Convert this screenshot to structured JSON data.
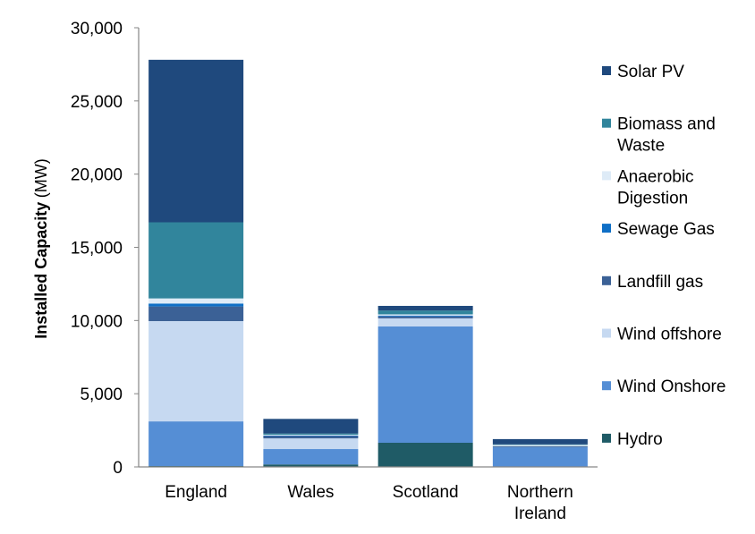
{
  "chart_data": {
    "type": "bar",
    "stacked": true,
    "categories": [
      "England",
      "Wales",
      "Scotland",
      "Northern Ireland"
    ],
    "category_lines": [
      [
        "England"
      ],
      [
        "Wales"
      ],
      [
        "Scotland"
      ],
      [
        "Northern",
        "Ireland"
      ]
    ],
    "ylabel_main": "Installed Capacity",
    "ylabel_unit": "(MW)",
    "ylim": [
      0,
      30000
    ],
    "yticks": [
      0,
      5000,
      10000,
      15000,
      20000,
      25000,
      30000
    ],
    "ytick_labels": [
      "0",
      "5,000",
      "10,000",
      "15,000",
      "20,000",
      "25,000",
      "30,000"
    ],
    "grid": false,
    "legend_position": "right",
    "series": [
      {
        "name": "Hydro",
        "color": "#1f5b66",
        "values": [
          60,
          170,
          1650,
          10
        ]
      },
      {
        "name": "Wind Onshore",
        "color": "#558ed5",
        "values": [
          3050,
          1050,
          7950,
          1330
        ]
      },
      {
        "name": "Wind offshore",
        "color": "#c6d9f1",
        "values": [
          6850,
          730,
          550,
          0
        ]
      },
      {
        "name": "Landfill gas",
        "color": "#3b6196",
        "values": [
          1000,
          160,
          130,
          60
        ]
      },
      {
        "name": "Sewage Gas",
        "color": "#0f6fc6",
        "values": [
          200,
          30,
          60,
          10
        ]
      },
      {
        "name": "Anaerobic Digestion",
        "color": "#deebf7",
        "values": [
          350,
          60,
          80,
          90
        ]
      },
      {
        "name": "Biomass and Waste",
        "color": "#31859c",
        "values": [
          5200,
          80,
          260,
          40
        ]
      },
      {
        "name": "Solar PV",
        "color": "#1f497d",
        "values": [
          11100,
          1000,
          320,
          360
        ]
      }
    ],
    "legend_order": [
      {
        "index": 7,
        "lines": [
          "Solar PV"
        ]
      },
      {
        "index": 6,
        "lines": [
          "Biomass and",
          "Waste"
        ]
      },
      {
        "index": 5,
        "lines": [
          "Anaerobic",
          "Digestion"
        ]
      },
      {
        "index": 4,
        "lines": [
          "Sewage Gas"
        ]
      },
      {
        "index": 3,
        "lines": [
          "Landfill gas"
        ]
      },
      {
        "index": 2,
        "lines": [
          "Wind offshore"
        ]
      },
      {
        "index": 1,
        "lines": [
          "Wind Onshore"
        ]
      },
      {
        "index": 0,
        "lines": [
          "Hydro"
        ]
      }
    ]
  }
}
